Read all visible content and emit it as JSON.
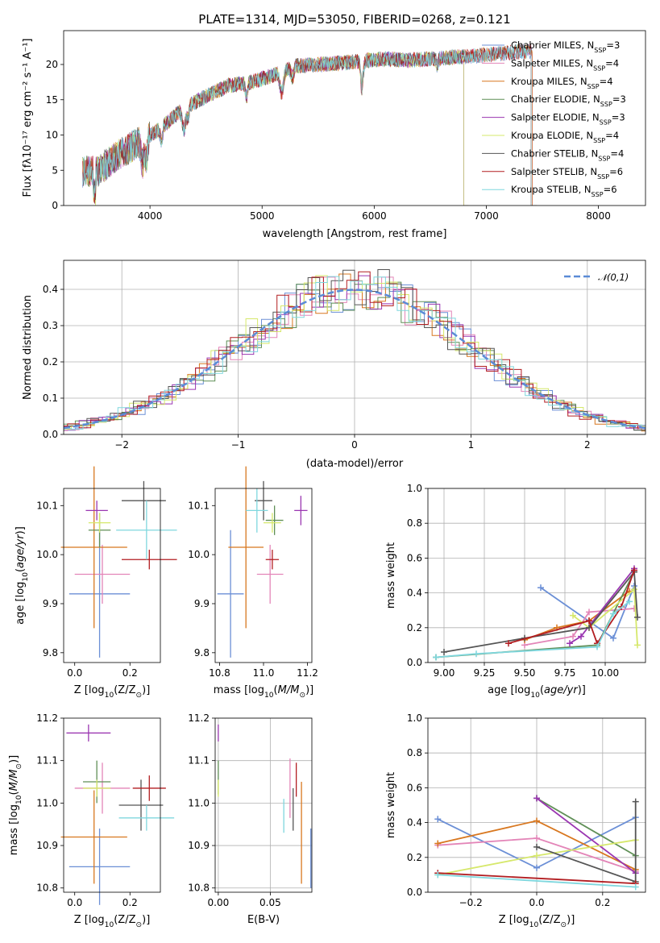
{
  "chart_data": [
    {
      "id": "spectrum",
      "type": "line",
      "title": "PLATE=1314, MJD=53050, FIBERID=0268, z=0.121",
      "xlabel": "wavelength [Angstrom, rest frame]",
      "ylabel": "Flux [fλ10⁻¹⁷ erg cm⁻² s⁻¹ A⁻¹]",
      "xlim": [
        3230,
        8420
      ],
      "ylim": [
        0,
        24.8
      ],
      "xticks": [
        "4000",
        "5000",
        "6000",
        "7000",
        "8000"
      ],
      "yticks": [
        "0",
        "5",
        "10",
        "15",
        "20"
      ],
      "continuum": {
        "wavelength": [
          3400,
          3550,
          3700,
          3850,
          3950,
          4100,
          4300,
          4500,
          4700,
          4900,
          5100,
          5300,
          5500,
          5700,
          5900,
          6100,
          6300,
          6500,
          6700,
          6900,
          7100,
          7300,
          7500
        ],
        "flux": [
          4.8,
          5.0,
          7.0,
          8.5,
          9.5,
          11.0,
          13.8,
          15.5,
          17.0,
          17.5,
          18.5,
          19.8,
          20.0,
          20.2,
          20.5,
          20.8,
          20.6,
          20.8,
          21.0,
          21.2,
          21.5,
          21.8,
          22.0
        ]
      },
      "series": [
        {
          "name": "Chabrier MILES, N$_{SSP}$=3",
          "color": "#6b8fd6",
          "end": 7410
        },
        {
          "name": "Salpeter MILES, N$_{SSP}$=4",
          "color": "#e385b8",
          "end": 7410
        },
        {
          "name": "Kroupa MILES, N$_{SSP}$=4",
          "color": "#d8771f",
          "end": 7410
        },
        {
          "name": "Chabrier ELODIE, N$_{SSP}$=3",
          "color": "#5f8f56",
          "end": 6800
        },
        {
          "name": "Salpeter ELODIE, N$_{SSP}$=3",
          "color": "#9a36b1",
          "end": 6800
        },
        {
          "name": "Kroupa ELODIE, N$_{SSP}$=4",
          "color": "#d6e86b",
          "end": 6800
        },
        {
          "name": "Chabrier STELIB, N$_{SSP}$=4",
          "color": "#555555",
          "end": 7400
        },
        {
          "name": "Salpeter STELIB, N$_{SSP}$=6",
          "color": "#b21d21",
          "end": 7400
        },
        {
          "name": "Kroupa STELIB, N$_{SSP}$=6",
          "color": "#7fd7de",
          "end": 7400
        }
      ]
    },
    {
      "id": "residuals",
      "type": "line",
      "xlabel": "(data-model)/error",
      "ylabel": "Normed distribution",
      "xlim": [
        -2.5,
        2.5
      ],
      "ylim": [
        0,
        0.48
      ],
      "xticks": [
        "−2",
        "−1",
        "0",
        "1",
        "2"
      ],
      "yticks": [
        "0.0",
        "0.1",
        "0.2",
        "0.3",
        "0.4"
      ],
      "legend": "$\\mathcal{N}(0,1)$",
      "bin_width": 0.1,
      "grid": true
    },
    {
      "id": "age-vs-Z",
      "type": "scatter",
      "xlabel": "Z [log$_{10}$(Z/Z$_\\odot$)]",
      "ylabel": "age  [log$_{10}$($age/yr$)]",
      "xlim": [
        -0.04,
        0.31
      ],
      "ylim": [
        9.78,
        10.135
      ],
      "xticks": [
        "0.0",
        "0.2"
      ],
      "yticks": [
        "9.8",
        "9.9",
        "10.0",
        "10.1"
      ],
      "points": [
        {
          "x": 0.09,
          "y": 9.92,
          "xe": 0.11,
          "ye": 0.13,
          "color": "#6b8fd6"
        },
        {
          "x": 0.1,
          "y": 9.96,
          "xe": 0.1,
          "ye": 0.06,
          "color": "#e385b8"
        },
        {
          "x": 0.07,
          "y": 10.015,
          "xe": 0.12,
          "ye": 0.165,
          "color": "#d8771f"
        },
        {
          "x": 0.09,
          "y": 10.05,
          "xe": 0.04,
          "ye": 0.035,
          "color": "#5f8f56"
        },
        {
          "x": 0.08,
          "y": 10.09,
          "xe": 0.04,
          "ye": 0.02,
          "color": "#9a36b1"
        },
        {
          "x": 0.09,
          "y": 10.065,
          "xe": 0.04,
          "ye": 0.02,
          "color": "#d6e86b"
        },
        {
          "x": 0.25,
          "y": 10.11,
          "xe": 0.08,
          "ye": 0.04,
          "color": "#555555"
        },
        {
          "x": 0.27,
          "y": 9.99,
          "xe": 0.1,
          "ye": 0.02,
          "color": "#b21d21"
        },
        {
          "x": 0.26,
          "y": 10.05,
          "xe": 0.11,
          "ye": 0.06,
          "color": "#7fd7de"
        }
      ]
    },
    {
      "id": "age-vs-mass",
      "type": "scatter",
      "xlabel": "mass [log$_{10}$($M/M_\\odot$)]",
      "ylabel": "",
      "xlim": [
        10.78,
        11.22
      ],
      "ylim": [
        9.78,
        10.135
      ],
      "xticks": [
        "10.8",
        "11.0",
        "11.2"
      ],
      "yticks": [
        "9.8",
        "9.9",
        "10.0",
        "10.1"
      ],
      "points": [
        {
          "x": 10.85,
          "y": 9.92,
          "xe": 0.06,
          "ye": 0.13,
          "color": "#6b8fd6"
        },
        {
          "x": 11.03,
          "y": 9.96,
          "xe": 0.06,
          "ye": 0.06,
          "color": "#e385b8"
        },
        {
          "x": 10.92,
          "y": 10.015,
          "xe": 0.08,
          "ye": 0.165,
          "color": "#d8771f"
        },
        {
          "x": 11.05,
          "y": 10.07,
          "xe": 0.04,
          "ye": 0.03,
          "color": "#5f8f56"
        },
        {
          "x": 11.17,
          "y": 10.09,
          "xe": 0.03,
          "ye": 0.03,
          "color": "#9a36b1"
        },
        {
          "x": 11.04,
          "y": 10.065,
          "xe": 0.04,
          "ye": 0.02,
          "color": "#d6e86b"
        },
        {
          "x": 11.0,
          "y": 10.11,
          "xe": 0.04,
          "ye": 0.04,
          "color": "#555555"
        },
        {
          "x": 11.04,
          "y": 9.99,
          "xe": 0.03,
          "ye": 0.02,
          "color": "#b21d21"
        },
        {
          "x": 10.97,
          "y": 10.09,
          "xe": 0.05,
          "ye": 0.045,
          "color": "#7fd7de"
        }
      ]
    },
    {
      "id": "weight-vs-age",
      "type": "line",
      "xlabel": "age  [log$_{10}$($age/yr$)]",
      "ylabel": "mass weight",
      "xlim": [
        8.9,
        10.25
      ],
      "ylim": [
        0,
        1
      ],
      "xticks": [
        "9.00",
        "9.25",
        "9.50",
        "9.75",
        "10.00"
      ],
      "yticks": [
        "0.0",
        "0.2",
        "0.4",
        "0.6",
        "0.8",
        "1.0"
      ],
      "grid": true,
      "series": [
        {
          "color": "#6b8fd6",
          "x": [
            9.6,
            10.05,
            10.18
          ],
          "y": [
            0.43,
            0.14,
            0.44
          ]
        },
        {
          "color": "#e385b8",
          "x": [
            9.5,
            9.8,
            9.9,
            10.18
          ],
          "y": [
            0.1,
            0.15,
            0.29,
            0.31
          ]
        },
        {
          "color": "#d8771f",
          "x": [
            9.5,
            9.7,
            9.9,
            10.15
          ],
          "y": [
            0.13,
            0.2,
            0.24,
            0.41
          ]
        },
        {
          "color": "#5f8f56",
          "x": [
            8.95,
            9.95,
            10.18
          ],
          "y": [
            0.03,
            0.1,
            0.52
          ]
        },
        {
          "color": "#9a36b1",
          "x": [
            9.78,
            9.85,
            10.18
          ],
          "y": [
            0.11,
            0.15,
            0.54
          ]
        },
        {
          "color": "#d6e86b",
          "x": [
            9.8,
            9.9,
            10.18,
            10.2
          ],
          "y": [
            0.27,
            0.2,
            0.42,
            0.1
          ]
        },
        {
          "color": "#555555",
          "x": [
            9.0,
            9.5,
            9.9,
            10.18,
            10.2
          ],
          "y": [
            0.06,
            0.14,
            0.2,
            0.52,
            0.26
          ]
        },
        {
          "color": "#b21d21",
          "x": [
            9.4,
            9.9,
            9.95,
            10.1,
            10.18
          ],
          "y": [
            0.11,
            0.24,
            0.11,
            0.32,
            0.53
          ]
        },
        {
          "color": "#7fd7de",
          "x": [
            8.95,
            9.2,
            9.95,
            10.05,
            10.15
          ],
          "y": [
            0.03,
            0.05,
            0.09,
            0.28,
            0.35
          ]
        }
      ]
    },
    {
      "id": "mass-vs-Z",
      "type": "scatter",
      "xlabel": "Z [log$_{10}$(Z/Z$_\\odot$)]",
      "ylabel": "mass [log$_{10}$($M/M_\\odot$)]",
      "xlim": [
        -0.04,
        0.31
      ],
      "ylim": [
        10.79,
        11.2
      ],
      "xticks": [
        "0.0",
        "0.2"
      ],
      "yticks": [
        "10.8",
        "10.9",
        "11.0",
        "11.1",
        "11.2"
      ],
      "points": [
        {
          "x": 0.09,
          "y": 10.85,
          "xe": 0.11,
          "ye": 0.09,
          "color": "#6b8fd6"
        },
        {
          "x": 0.1,
          "y": 11.035,
          "xe": 0.1,
          "ye": 0.06,
          "color": "#e385b8"
        },
        {
          "x": 0.07,
          "y": 10.92,
          "xe": 0.12,
          "ye": 0.11,
          "color": "#d8771f"
        },
        {
          "x": 0.08,
          "y": 11.05,
          "xe": 0.05,
          "ye": 0.05,
          "color": "#5f8f56"
        },
        {
          "x": 0.05,
          "y": 11.165,
          "xe": 0.08,
          "ye": 0.02,
          "color": "#9a36b1"
        },
        {
          "x": 0.08,
          "y": 11.035,
          "xe": 0.05,
          "ye": 0.02,
          "color": "#d6e86b"
        },
        {
          "x": 0.24,
          "y": 10.995,
          "xe": 0.08,
          "ye": 0.06,
          "color": "#555555"
        },
        {
          "x": 0.27,
          "y": 11.035,
          "xe": 0.06,
          "ye": 0.03,
          "color": "#b21d21"
        },
        {
          "x": 0.26,
          "y": 10.965,
          "xe": 0.1,
          "ye": 0.03,
          "color": "#7fd7de"
        }
      ]
    },
    {
      "id": "mass-vs-EBV",
      "type": "scatter",
      "xlabel": "E(B-V)",
      "ylabel": "",
      "xlim": [
        -0.003,
        0.09
      ],
      "ylim": [
        10.79,
        11.2
      ],
      "xticks": [
        "0.00",
        "0.05"
      ],
      "yticks": [
        "10.8",
        "10.9",
        "11.0",
        "11.1",
        "11.2"
      ],
      "grid": true,
      "points": [
        {
          "x": 0.089,
          "y": 10.87,
          "ye": 0.07,
          "color": "#6b8fd6"
        },
        {
          "x": 0.069,
          "y": 11.035,
          "ye": 0.07,
          "color": "#e385b8"
        },
        {
          "x": 0.08,
          "y": 10.93,
          "ye": 0.12,
          "color": "#d8771f"
        },
        {
          "x": 0.0,
          "y": 11.06,
          "ye": 0.04,
          "color": "#5f8f56"
        },
        {
          "x": 0.0,
          "y": 11.165,
          "ye": 0.02,
          "color": "#9a36b1"
        },
        {
          "x": 0.0,
          "y": 11.035,
          "ye": 0.02,
          "color": "#d6e86b"
        },
        {
          "x": 0.072,
          "y": 10.985,
          "ye": 0.05,
          "color": "#555555"
        },
        {
          "x": 0.075,
          "y": 11.055,
          "ye": 0.04,
          "color": "#b21d21"
        },
        {
          "x": 0.063,
          "y": 10.97,
          "ye": 0.04,
          "color": "#7fd7de"
        }
      ]
    },
    {
      "id": "weight-vs-Z",
      "type": "line",
      "xlabel": "Z [log$_{10}$(Z/Z$_\\odot$)]",
      "ylabel": "mass weight",
      "xlim": [
        -0.33,
        0.33
      ],
      "ylim": [
        0,
        1
      ],
      "xticks": [
        "−0.2",
        "0.0",
        "0.2"
      ],
      "yticks": [
        "0.0",
        "0.2",
        "0.4",
        "0.6",
        "0.8",
        "1.0"
      ],
      "grid": true,
      "series": [
        {
          "color": "#6b8fd6",
          "x": [
            -0.3,
            0.0,
            0.3
          ],
          "y": [
            0.42,
            0.14,
            0.43
          ]
        },
        {
          "color": "#e385b8",
          "x": [
            -0.3,
            0.0,
            0.3
          ],
          "y": [
            0.27,
            0.31,
            0.12
          ]
        },
        {
          "color": "#d8771f",
          "x": [
            -0.3,
            0.0,
            0.3
          ],
          "y": [
            0.28,
            0.41,
            0.13
          ]
        },
        {
          "color": "#5f8f56",
          "x": [
            0.0,
            0.3
          ],
          "y": [
            0.54,
            0.21
          ]
        },
        {
          "color": "#9a36b1",
          "x": [
            0.0,
            0.3
          ],
          "y": [
            0.54,
            0.11
          ]
        },
        {
          "color": "#d6e86b",
          "x": [
            -0.3,
            0.0,
            0.3
          ],
          "y": [
            0.1,
            0.21,
            0.3
          ]
        },
        {
          "color": "#555555",
          "x": [
            0.0,
            0.3,
            0.3
          ],
          "y": [
            0.26,
            0.06,
            0.52
          ]
        },
        {
          "color": "#b21d21",
          "x": [
            -0.3,
            0.3
          ],
          "y": [
            0.11,
            0.05
          ]
        },
        {
          "color": "#7fd7de",
          "x": [
            -0.3,
            0.3
          ],
          "y": [
            0.1,
            0.03
          ]
        }
      ]
    }
  ]
}
